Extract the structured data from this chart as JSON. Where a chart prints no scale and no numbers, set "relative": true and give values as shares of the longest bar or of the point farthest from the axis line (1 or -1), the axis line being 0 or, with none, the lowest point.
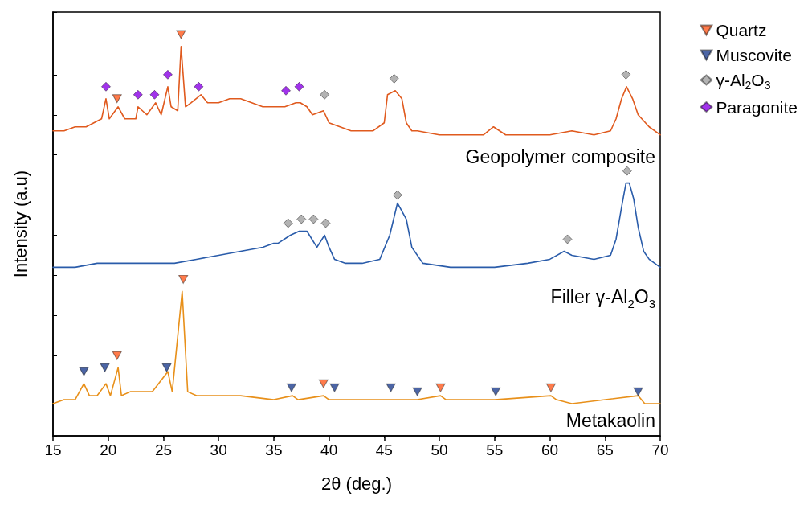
{
  "chart_data": {
    "type": "line",
    "relative": true,
    "xlabel": "2θ (deg.)",
    "ylabel": "Intensity (a.u)",
    "xlim": [
      15,
      70
    ],
    "xticks": [
      15,
      20,
      25,
      30,
      35,
      40,
      45,
      50,
      55,
      60,
      65,
      70
    ],
    "tick_labels": "x",
    "grid": false,
    "legend": "top right",
    "series": [
      {
        "marker": "none",
        "color": "#e05a1e",
        "x": [
          15,
          16,
          17,
          18,
          19.4,
          19.8,
          20.1,
          20.9,
          21.5,
          22.5,
          22.7,
          23.5,
          24.3,
          24.8,
          25.4,
          25.7,
          26.3,
          26.6,
          27.0,
          27.5,
          28.4,
          29,
          30,
          31,
          32,
          33,
          34,
          35,
          36,
          37,
          37.4,
          38,
          38.5,
          39.5,
          40,
          41,
          42,
          43,
          44,
          45,
          45.3,
          46.0,
          46.6,
          47,
          47.5,
          48,
          50,
          52,
          54,
          54.9,
          56,
          58,
          60,
          62,
          64,
          65.5,
          66,
          66.5,
          66.95,
          67.5,
          68,
          69,
          70
        ],
        "values": [
          0.76,
          0.76,
          0.77,
          0.77,
          0.79,
          0.84,
          0.79,
          0.82,
          0.79,
          0.79,
          0.82,
          0.8,
          0.83,
          0.8,
          0.87,
          0.82,
          0.81,
          0.97,
          0.82,
          0.83,
          0.85,
          0.83,
          0.83,
          0.84,
          0.84,
          0.83,
          0.82,
          0.82,
          0.82,
          0.83,
          0.83,
          0.82,
          0.8,
          0.81,
          0.78,
          0.77,
          0.76,
          0.76,
          0.76,
          0.78,
          0.85,
          0.86,
          0.84,
          0.78,
          0.76,
          0.76,
          0.75,
          0.75,
          0.75,
          0.77,
          0.75,
          0.75,
          0.75,
          0.76,
          0.75,
          0.76,
          0.79,
          0.84,
          0.87,
          0.84,
          0.8,
          0.77,
          0.75
        ]
      },
      {
        "marker": "none",
        "color": "#2a5caa",
        "x": [
          15,
          17,
          19,
          22,
          24,
          26,
          28,
          30,
          32,
          34,
          35,
          35.4,
          36.5,
          37.3,
          38,
          38.9,
          39.6,
          40,
          40.5,
          41.5,
          43,
          44.6,
          45.5,
          46.2,
          47,
          47.5,
          48.5,
          51,
          55,
          58,
          60,
          61.3,
          62,
          64,
          65.5,
          66,
          66.5,
          66.9,
          67.2,
          67.6,
          68,
          68.5,
          69,
          70
        ],
        "values": [
          0.42,
          0.42,
          0.43,
          0.43,
          0.43,
          0.43,
          0.44,
          0.45,
          0.46,
          0.47,
          0.48,
          0.48,
          0.5,
          0.51,
          0.51,
          0.47,
          0.5,
          0.47,
          0.44,
          0.43,
          0.43,
          0.44,
          0.5,
          0.58,
          0.54,
          0.47,
          0.43,
          0.42,
          0.42,
          0.43,
          0.44,
          0.46,
          0.45,
          0.44,
          0.45,
          0.49,
          0.57,
          0.63,
          0.63,
          0.59,
          0.52,
          0.46,
          0.44,
          0.42
        ]
      },
      {
        "marker": "none",
        "color": "#e8901a",
        "x": [
          15,
          16,
          17,
          17.8,
          18.3,
          19,
          19.8,
          20.2,
          20.9,
          21.2,
          22,
          23,
          24,
          25.4,
          25.8,
          26.7,
          27.2,
          28,
          30,
          32,
          35,
          36.7,
          37.2,
          39.5,
          40,
          45.5,
          48,
          50.1,
          50.6,
          55,
          60.1,
          60.6,
          62,
          68,
          68.6,
          70
        ],
        "values": [
          0.08,
          0.09,
          0.09,
          0.13,
          0.1,
          0.1,
          0.13,
          0.1,
          0.17,
          0.1,
          0.11,
          0.11,
          0.11,
          0.16,
          0.11,
          0.36,
          0.11,
          0.1,
          0.1,
          0.1,
          0.09,
          0.1,
          0.09,
          0.1,
          0.09,
          0.09,
          0.09,
          0.1,
          0.09,
          0.09,
          0.1,
          0.09,
          0.08,
          0.1,
          0.08,
          0.08
        ]
      },
      {
        "type": "scatter",
        "name": "Quartz",
        "marker": "triangle",
        "color": "#ff5a1e",
        "x": [
          26.6,
          20.8,
          26.8,
          20.8,
          39.5,
          50.1,
          60.1
        ],
        "values": [
          1.0,
          0.84,
          0.39,
          0.2,
          0.13,
          0.12,
          0.12
        ]
      },
      {
        "type": "scatter",
        "name": "Muscovite",
        "marker": "triangle",
        "color": "#1f3f8f",
        "x": [
          17.8,
          19.7,
          25.3,
          36.6,
          40.5,
          45.6,
          48.0,
          55.1,
          68.0
        ],
        "values": [
          0.16,
          0.17,
          0.17,
          0.12,
          0.12,
          0.12,
          0.11,
          0.11,
          0.11
        ]
      },
      {
        "type": "scatter",
        "name": "γ-Al$_{2}$O$_{3}$",
        "marker": "diamond",
        "color": "#a0a0a0",
        "x": [
          39.6,
          45.9,
          66.9,
          36.3,
          37.5,
          38.6,
          39.7,
          46.2,
          61.6,
          67.0
        ],
        "values": [
          0.85,
          0.89,
          0.9,
          0.53,
          0.54,
          0.54,
          0.53,
          0.6,
          0.49,
          0.66
        ]
      },
      {
        "type": "scatter",
        "name": "Paragonite",
        "marker": "diamond",
        "color": "#8a00e6",
        "x": [
          19.8,
          22.7,
          24.2,
          25.4,
          28.2,
          36.1,
          37.3
        ],
        "values": [
          0.87,
          0.85,
          0.85,
          0.9,
          0.87,
          0.86,
          0.87
        ]
      }
    ],
    "annotations": [
      "Geopolymer composite",
      "Filler γ-Al$_{2}$O$_{3}$",
      "Metakaolin"
    ]
  }
}
